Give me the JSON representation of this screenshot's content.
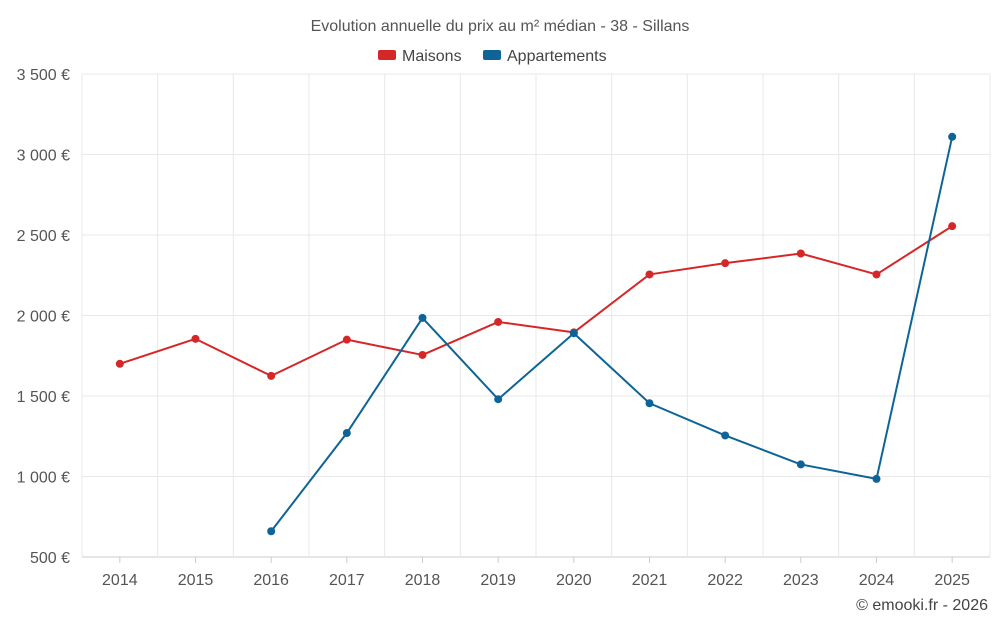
{
  "chart_data": {
    "type": "line",
    "title": "Evolution annuelle du prix au m² médian - 38 - Sillans",
    "categories": [
      "2014",
      "2015",
      "2016",
      "2017",
      "2018",
      "2019",
      "2020",
      "2021",
      "2022",
      "2023",
      "2024",
      "2025"
    ],
    "series": [
      {
        "name": "Maisons",
        "color": "#d62728",
        "values": [
          1700,
          1855,
          1625,
          1850,
          1755,
          1960,
          1895,
          2255,
          2325,
          2385,
          2255,
          2555
        ]
      },
      {
        "name": "Appartements",
        "color": "#0e6497",
        "values": [
          null,
          null,
          660,
          1270,
          1985,
          1480,
          1890,
          1455,
          1255,
          1075,
          985,
          3110
        ]
      }
    ],
    "y_ticks": [
      500,
      1000,
      1500,
      2000,
      2500,
      3000,
      3500
    ],
    "y_tick_labels": [
      "500 €",
      "1 000 €",
      "1 500 €",
      "2 000 €",
      "2 500 €",
      "3 000 €",
      "3 500 €"
    ],
    "ylim": [
      500,
      3500
    ],
    "xlabel": "",
    "ylabel": "",
    "grid": true,
    "legend": "top-center"
  },
  "credit": "© emooki.fr - 2026"
}
